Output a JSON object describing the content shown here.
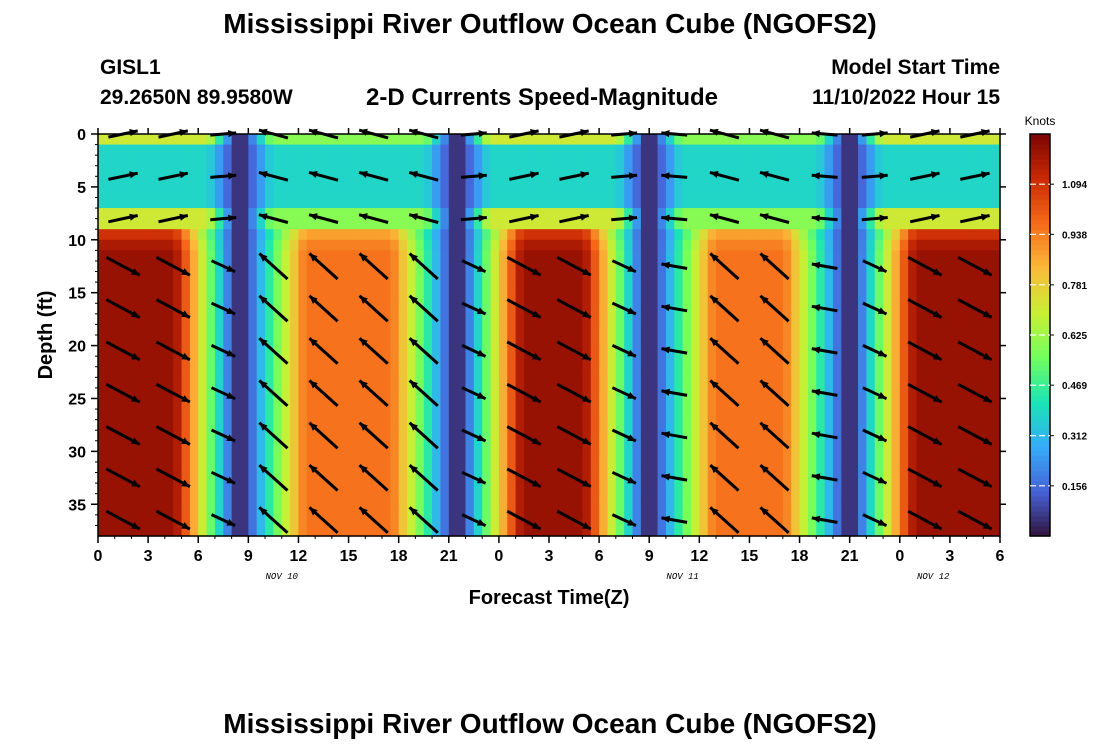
{
  "header": {
    "title": "Mississippi River Outflow Ocean Cube (NGOFS2)",
    "station_id": "GISL1",
    "station_coords": "29.2650N  89.9580W",
    "subtitle": "2-D Currents Speed-Magnitude",
    "model_start_label": "Model Start Time",
    "model_start_value": "11/10/2022 Hour 15"
  },
  "footer": {
    "title": "Mississippi River Outflow Ocean Cube (NGOFS2)"
  },
  "chart_data": {
    "type": "heatmap",
    "title": "2-D Currents Speed-Magnitude",
    "xlabel": "Forecast Time(Z)",
    "ylabel": "Depth (ft)",
    "x_tick_labels": [
      "0",
      "3",
      "6",
      "9",
      "12",
      "15",
      "18",
      "21",
      "0",
      "3",
      "6",
      "9",
      "12",
      "15",
      "18",
      "21",
      "0",
      "3",
      "6"
    ],
    "x_range_hours": [
      0,
      54
    ],
    "date_labels": [
      {
        "text": "NOV 10",
        "hour": 11
      },
      {
        "text": "NOV 11",
        "hour": 35
      },
      {
        "text": "NOV 12",
        "hour": 50
      }
    ],
    "y_ticks": [
      0,
      5,
      10,
      15,
      20,
      25,
      30,
      35
    ],
    "y_range_ft": [
      0,
      38
    ],
    "y_inverted": true,
    "colorbar": {
      "label": "Knots",
      "ticks": [
        1.094,
        0.938,
        0.781,
        0.625,
        0.469,
        0.312,
        0.156
      ],
      "tick_labels": [
        "1.094",
        "0.938",
        "0.781",
        "0.625",
        "0.469",
        "0.312",
        "0.156"
      ],
      "range": [
        0.0,
        1.25
      ],
      "colormap": [
        "#30123b",
        "#4662d7",
        "#35abf8",
        "#1ae4b6",
        "#72fe5e",
        "#c8ef34",
        "#faba39",
        "#f66b19",
        "#cb2a04",
        "#7a0403"
      ]
    },
    "speed_extremes": {
      "max_knots": 1.2,
      "min_knots": 0.05,
      "note_hours_of_ebb_peak": [
        2,
        28,
        52
      ],
      "hours_of_flood_peak": [
        15,
        40
      ],
      "hours_of_slack": [
        8.5,
        21.5,
        33,
        45
      ]
    },
    "vector_depths_ft": [
      0,
      4,
      8,
      12.5,
      16.5,
      20.5,
      24.5,
      28.5,
      32.5,
      36.5
    ],
    "vector_times_hours": [
      1.5,
      4.5,
      7.5,
      10.5,
      13.5,
      16.5,
      19.5,
      22.5,
      25.5,
      28.5,
      31.5,
      34.5,
      37.5,
      40.5,
      43.5,
      46.5,
      49.5,
      52.5
    ]
  }
}
